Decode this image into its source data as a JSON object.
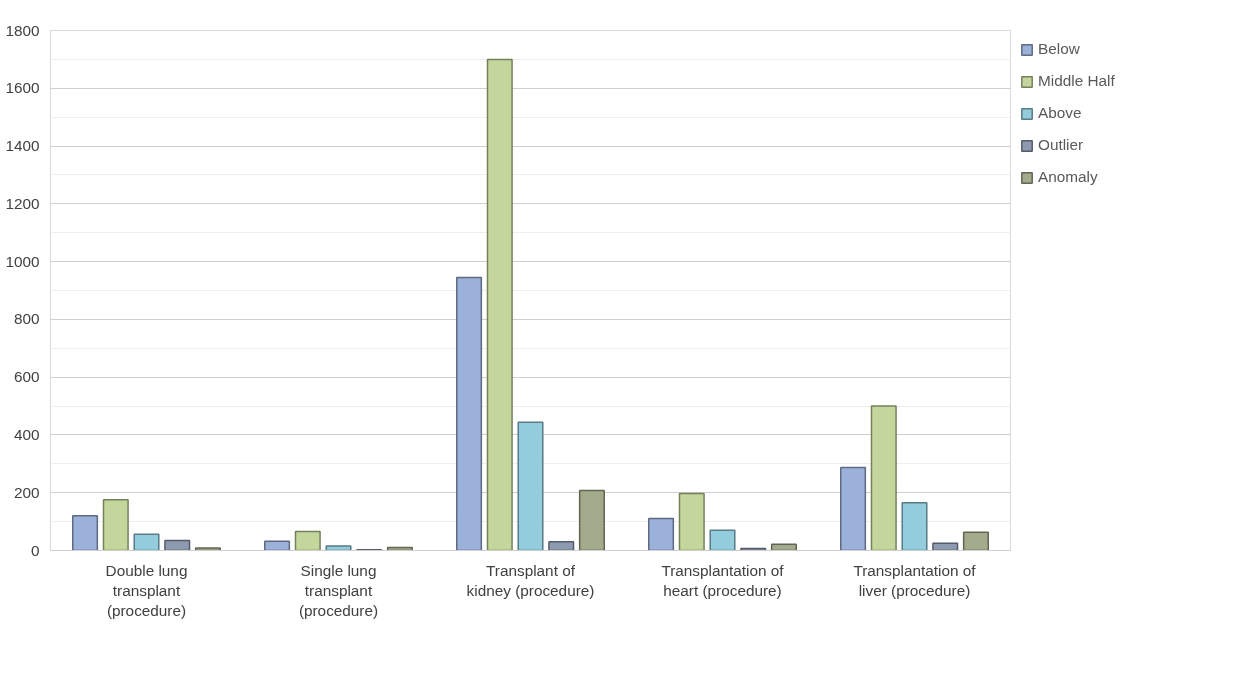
{
  "chart_data": {
    "type": "bar",
    "categories": [
      "Double lung transplant (procedure)",
      "Single lung transplant (procedure)",
      "Transplant of kidney (procedure)",
      "Transplantation of heart (procedure)",
      "Transplantation of liver (procedure)"
    ],
    "series": [
      {
        "name": "Below",
        "color": "#9bb1d9",
        "values": [
          120,
          32,
          945,
          111,
          287
        ]
      },
      {
        "name": "Middle Half",
        "color": "#c3d69b",
        "values": [
          176,
          66,
          1700,
          197,
          500
        ]
      },
      {
        "name": "Above",
        "color": "#93cddd",
        "values": [
          56,
          16,
          444,
          70,
          165
        ]
      },
      {
        "name": "Outlier",
        "color": "#8e9ab0",
        "values": [
          35,
          3,
          30,
          7,
          25
        ]
      },
      {
        "name": "Anomaly",
        "color": "#a3ab8c",
        "values": [
          9,
          10,
          208,
          22,
          63
        ]
      }
    ],
    "ylim": [
      0,
      1800
    ],
    "yticks": [
      0,
      200,
      400,
      600,
      800,
      1000,
      1200,
      1400,
      1600,
      1800
    ],
    "grid": "y",
    "legend": "right"
  }
}
